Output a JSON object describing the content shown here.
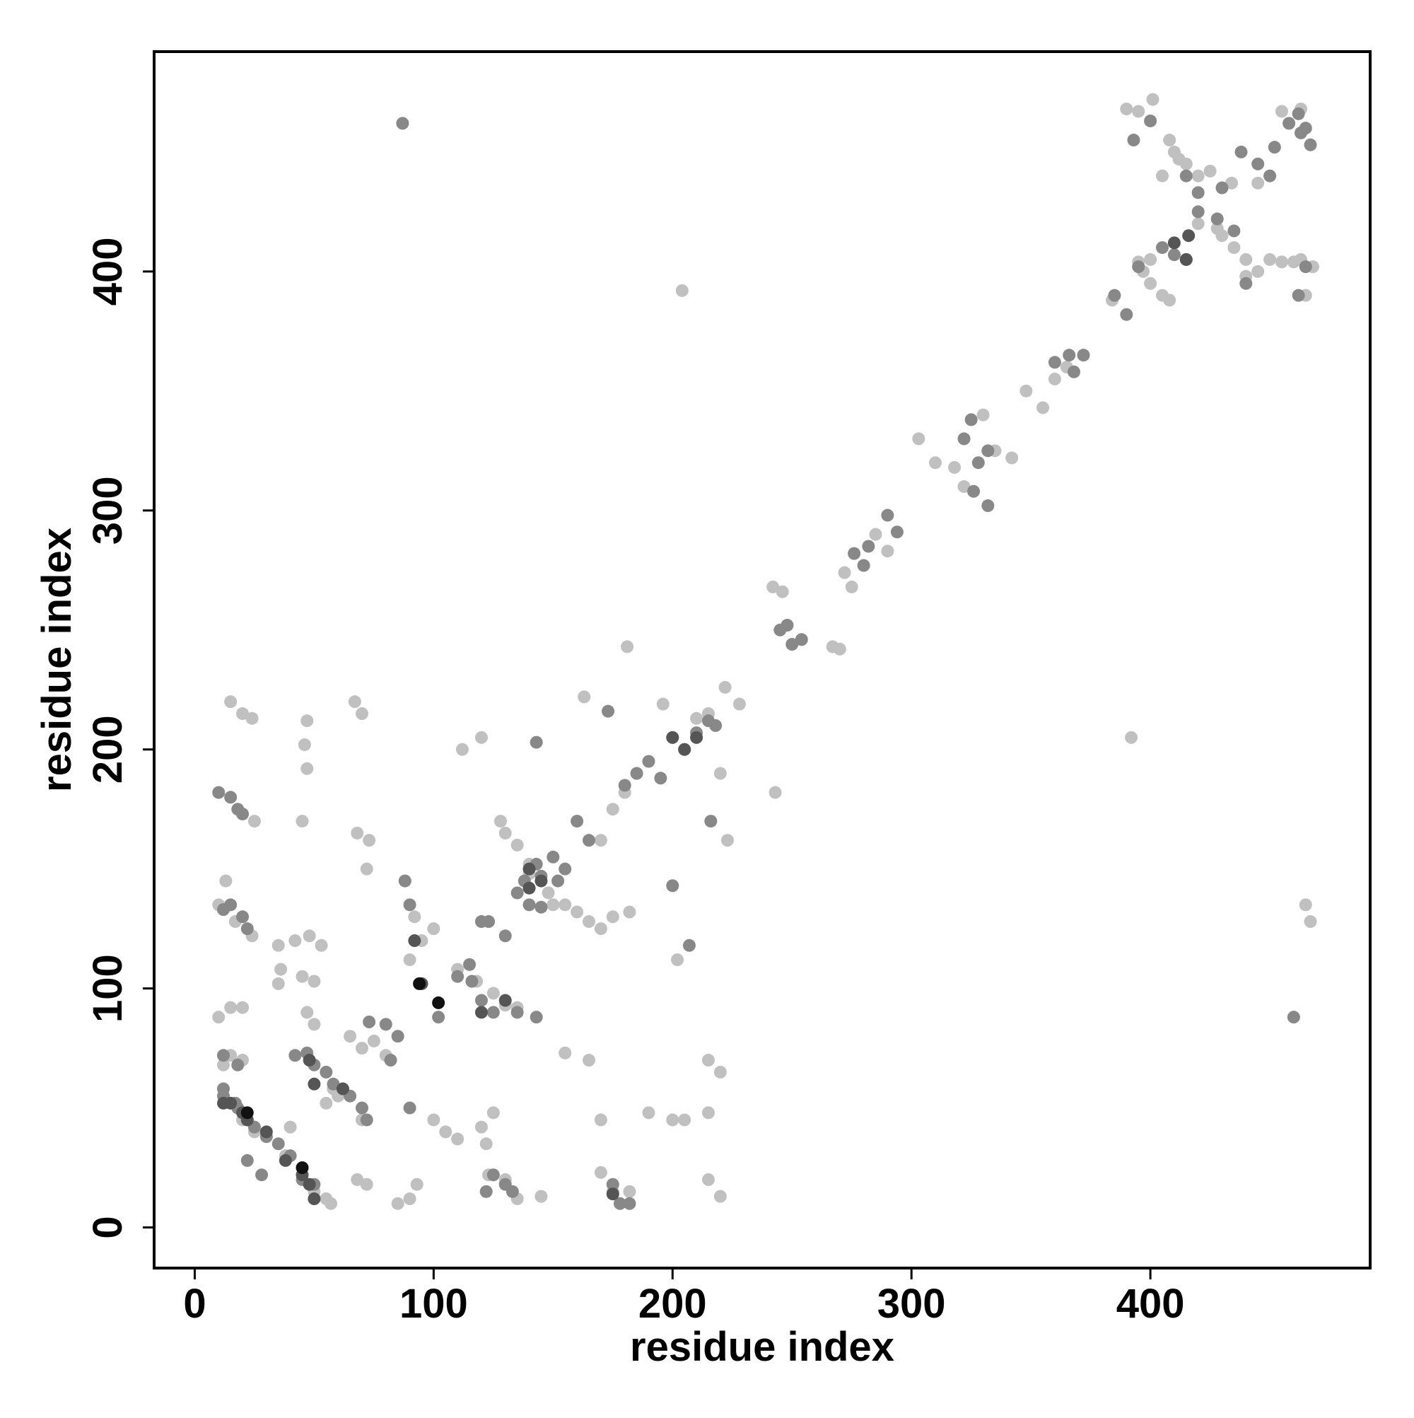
{
  "chart_data": {
    "type": "scatter",
    "xlabel": "residue index",
    "ylabel": "residue index",
    "xlim": [
      -17,
      492
    ],
    "ylim": [
      -17,
      492
    ],
    "xticks": [
      0,
      100,
      200,
      300,
      400
    ],
    "yticks": [
      0,
      100,
      200,
      300,
      400
    ],
    "grid": false,
    "series": [
      {
        "color": "#c0c0c0",
        "x": [
          390,
          395,
          401,
          408,
          410,
          412,
          415,
          405,
          420,
          425,
          400,
          395,
          397,
          400,
          405,
          408,
          430,
          435,
          440,
          445,
          450,
          455,
          460,
          440,
          465,
          468,
          463,
          384,
          420,
          428,
          445,
          434,
          463,
          455,
          348,
          355,
          360,
          365,
          303,
          310,
          318,
          322,
          330,
          335,
          342,
          285,
          290,
          272,
          275,
          242,
          246,
          267,
          270,
          392,
          204,
          243,
          181,
          222,
          228,
          196,
          200,
          210,
          215,
          185,
          180,
          175,
          170,
          128,
          130,
          135,
          140,
          148,
          155,
          160,
          165,
          170,
          175,
          182,
          100,
          95,
          90,
          110,
          118,
          125,
          130,
          135,
          88,
          92,
          15,
          20,
          24,
          67,
          70,
          47,
          46,
          47,
          45,
          25,
          68,
          73,
          72,
          13,
          10,
          17,
          24,
          35,
          42,
          48,
          53,
          36,
          45,
          50,
          35,
          10,
          15,
          20,
          15,
          20,
          12,
          47,
          50,
          75,
          80,
          70,
          65,
          60,
          70,
          55,
          58,
          20,
          25,
          30,
          40,
          38,
          45,
          50,
          55,
          57,
          68,
          72,
          85,
          90,
          93,
          100,
          105,
          110,
          120,
          125,
          122,
          123,
          130,
          135,
          145,
          155,
          165,
          170,
          170,
          175,
          182,
          190,
          200,
          205,
          215,
          215,
          220,
          215,
          220,
          223,
          220,
          202,
          112,
          120,
          163,
          150,
          140,
          465,
          467
        ],
        "y": [
          468,
          467,
          472,
          455,
          450,
          447,
          445,
          440,
          440,
          442,
          405,
          404,
          400,
          395,
          390,
          388,
          415,
          410,
          405,
          400,
          405,
          404,
          404,
          398,
          390,
          402,
          405,
          388,
          420,
          418,
          437,
          437,
          468,
          467,
          350,
          343,
          355,
          360,
          330,
          320,
          318,
          310,
          340,
          325,
          322,
          290,
          283,
          274,
          268,
          268,
          266,
          243,
          242,
          205,
          392,
          182,
          243,
          226,
          219,
          219,
          205,
          213,
          215,
          190,
          182,
          175,
          162,
          170,
          165,
          160,
          152,
          140,
          135,
          132,
          128,
          125,
          130,
          132,
          125,
          120,
          112,
          108,
          103,
          98,
          93,
          92,
          145,
          130,
          220,
          215,
          213,
          220,
          215,
          212,
          202,
          192,
          170,
          170,
          165,
          162,
          150,
          145,
          135,
          128,
          122,
          118,
          120,
          122,
          118,
          108,
          105,
          103,
          102,
          88,
          92,
          92,
          72,
          70,
          68,
          90,
          85,
          78,
          72,
          75,
          80,
          55,
          45,
          52,
          58,
          45,
          40,
          38,
          42,
          30,
          25,
          15,
          12,
          10,
          20,
          18,
          10,
          12,
          18,
          45,
          40,
          37,
          42,
          48,
          35,
          22,
          20,
          12,
          13,
          73,
          70,
          45,
          23,
          15,
          15,
          48,
          45,
          45,
          48,
          20,
          13,
          70,
          65,
          162,
          190,
          112,
          200,
          205,
          222,
          135,
          148,
          135,
          128
        ]
      },
      {
        "color": "#888888",
        "x": [
          87,
          400,
          393,
          390,
          385,
          395,
          405,
          410,
          415,
          420,
          428,
          440,
          438,
          445,
          450,
          452,
          458,
          462,
          465,
          467,
          463,
          462,
          465,
          420,
          415,
          430,
          435,
          360,
          366,
          368,
          372,
          322,
          332,
          328,
          325,
          326,
          332,
          290,
          294,
          282,
          280,
          276,
          245,
          248,
          250,
          254,
          180,
          185,
          190,
          195,
          205,
          210,
          215,
          218,
          216,
          200,
          207,
          143,
          173,
          160,
          165,
          150,
          145,
          152,
          155,
          138,
          135,
          140,
          143,
          145,
          130,
          123,
          120,
          115,
          110,
          116,
          120,
          125,
          135,
          143,
          102,
          95,
          90,
          88,
          85,
          80,
          82,
          73,
          10,
          15,
          18,
          20,
          12,
          15,
          20,
          22,
          12,
          18,
          42,
          47,
          50,
          55,
          58,
          65,
          70,
          72,
          12,
          18,
          22,
          25,
          30,
          35,
          40,
          22,
          28,
          45,
          50,
          122,
          125,
          130,
          133,
          175,
          178,
          182,
          90,
          460,
          12,
          17
        ],
        "y": [
          462,
          463,
          455,
          382,
          390,
          402,
          410,
          407,
          405,
          425,
          422,
          395,
          450,
          445,
          440,
          452,
          462,
          466,
          460,
          453,
          458,
          390,
          402,
          433,
          440,
          435,
          417,
          362,
          365,
          358,
          365,
          330,
          325,
          320,
          338,
          308,
          302,
          298,
          291,
          285,
          277,
          282,
          250,
          252,
          244,
          246,
          185,
          190,
          195,
          188,
          200,
          207,
          212,
          210,
          170,
          143,
          118,
          203,
          216,
          170,
          162,
          155,
          147,
          145,
          150,
          145,
          140,
          135,
          152,
          134,
          122,
          128,
          128,
          110,
          105,
          103,
          95,
          90,
          90,
          88,
          88,
          102,
          135,
          145,
          80,
          85,
          70,
          86,
          182,
          180,
          175,
          173,
          133,
          135,
          130,
          125,
          72,
          68,
          72,
          73,
          68,
          65,
          60,
          55,
          50,
          45,
          58,
          50,
          45,
          42,
          38,
          35,
          30,
          28,
          22,
          20,
          18,
          15,
          22,
          18,
          15,
          18,
          10,
          10,
          50,
          88,
          55,
          52
        ]
      },
      {
        "color": "#555555",
        "x": [
          410,
          415,
          416,
          62,
          48,
          50,
          20,
          15,
          30,
          45,
          50,
          95,
          145,
          140,
          140,
          130,
          120,
          175,
          205,
          200,
          210,
          92,
          22,
          38,
          12,
          48
        ],
        "y": [
          412,
          405,
          415,
          58,
          70,
          60,
          48,
          52,
          40,
          22,
          12,
          102,
          145,
          150,
          142,
          95,
          90,
          14,
          200,
          205,
          205,
          120,
          45,
          28,
          52,
          18
        ]
      },
      {
        "color": "#111111",
        "x": [
          94,
          102,
          22,
          45
        ],
        "y": [
          102,
          94,
          48,
          25
        ]
      }
    ]
  }
}
